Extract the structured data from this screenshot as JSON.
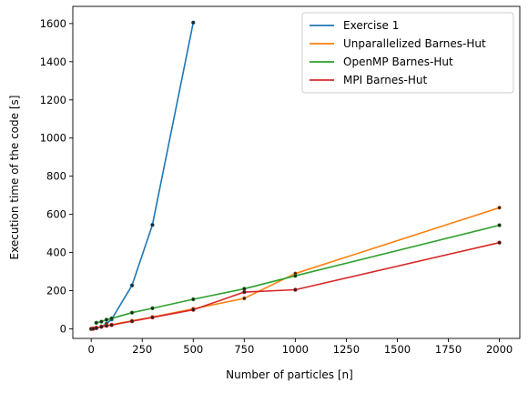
{
  "chart_data": {
    "type": "line",
    "title": "",
    "xlabel": "Number of particles [n]",
    "ylabel": "Execution time of the code [s]",
    "xlim": [
      -90,
      2100
    ],
    "ylim": [
      -50,
      1690
    ],
    "xticks": [
      0,
      250,
      500,
      750,
      1000,
      1250,
      1500,
      1750,
      2000
    ],
    "yticks": [
      0,
      200,
      400,
      600,
      800,
      1000,
      1200,
      1400,
      1600
    ],
    "grid": false,
    "legend_position": "top-right",
    "series": [
      {
        "name": "Exercise 1",
        "color": "#1f77b4",
        "points": [
          [
            0,
            0
          ],
          [
            10,
            0.5
          ],
          [
            25,
            3
          ],
          [
            50,
            12
          ],
          [
            75,
            27
          ],
          [
            100,
            50
          ],
          [
            200,
            228
          ],
          [
            300,
            545
          ],
          [
            500,
            1605
          ]
        ]
      },
      {
        "name": "Unparallelized Barnes-Hut",
        "color": "#ff7f0e",
        "points": [
          [
            0,
            0
          ],
          [
            10,
            2
          ],
          [
            25,
            6
          ],
          [
            50,
            12
          ],
          [
            75,
            18
          ],
          [
            100,
            22
          ],
          [
            200,
            42
          ],
          [
            300,
            62
          ],
          [
            500,
            105
          ],
          [
            750,
            160
          ],
          [
            1000,
            290
          ],
          [
            2000,
            635
          ]
        ]
      },
      {
        "name": "OpenMP Barnes-Hut",
        "color": "#2ca02c",
        "points": [
          [
            25,
            32
          ],
          [
            50,
            38
          ],
          [
            75,
            48
          ],
          [
            100,
            55
          ],
          [
            200,
            85
          ],
          [
            300,
            108
          ],
          [
            500,
            155
          ],
          [
            750,
            210
          ],
          [
            1000,
            278
          ],
          [
            2000,
            543
          ]
        ]
      },
      {
        "name": "MPI Barnes-Hut",
        "color": "#d62728",
        "points": [
          [
            0,
            0
          ],
          [
            10,
            1
          ],
          [
            25,
            5
          ],
          [
            50,
            11
          ],
          [
            75,
            16
          ],
          [
            100,
            20
          ],
          [
            200,
            40
          ],
          [
            300,
            60
          ],
          [
            500,
            100
          ],
          [
            750,
            193
          ],
          [
            1000,
            205
          ],
          [
            2000,
            452
          ]
        ]
      }
    ]
  }
}
